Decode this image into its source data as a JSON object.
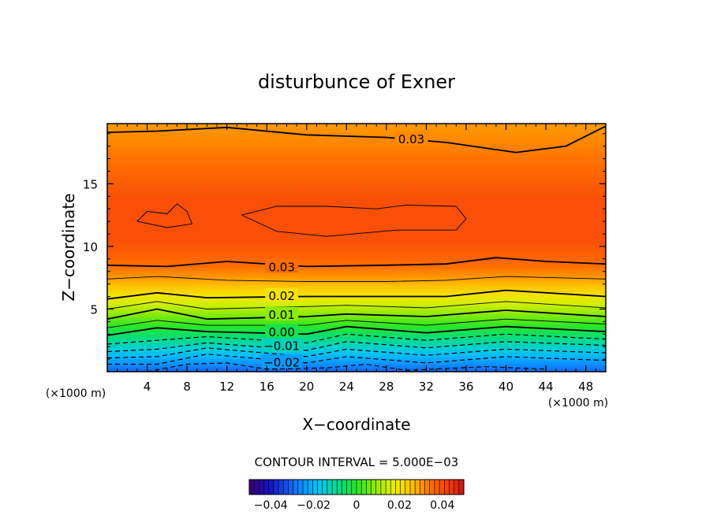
{
  "chart_data": {
    "type": "contour",
    "title": "disturbunce of Exner",
    "xlabel": "X−coordinate",
    "ylabel": "Z−coordinate",
    "x_unit": "(×1000 m)",
    "y_unit": "(×1000 m)",
    "xlim": [
      0,
      50
    ],
    "ylim": [
      0,
      19.8
    ],
    "x_ticks": [
      "4",
      "8",
      "12",
      "16",
      "20",
      "24",
      "28",
      "32",
      "36",
      "40",
      "44",
      "48"
    ],
    "y_ticks": [
      "5",
      "10",
      "15"
    ],
    "contour_interval_text": "CONTOUR INTERVAL = 5.000E−03",
    "contour_interval": 0.005,
    "contour_labels": [
      {
        "text": "0.03",
        "x": 30.5,
        "z": 18.6
      },
      {
        "text": "0.03",
        "x": 17.5,
        "z": 8.4
      },
      {
        "text": "0.02",
        "x": 17.5,
        "z": 6.1
      },
      {
        "text": "0.01",
        "x": 17.5,
        "z": 4.6
      },
      {
        "text": "0.00",
        "x": 17.5,
        "z": 3.2
      },
      {
        "text": "−0.01",
        "x": 17.5,
        "z": 2.1
      },
      {
        "text": "−0.02",
        "x": 17.5,
        "z": 0.8
      }
    ],
    "colorbar": {
      "range": [
        -0.05,
        0.05
      ],
      "tick_values": [
        -0.04,
        -0.02,
        0,
        0.02,
        0.04
      ],
      "tick_labels": [
        "−0.04",
        "−0.02",
        "0",
        "0.02",
        "0.04"
      ]
    },
    "field_rows": [
      {
        "z": 0.0,
        "value": -0.03
      },
      {
        "z": 0.6,
        "value": -0.025
      },
      {
        "z": 1.2,
        "value": -0.02
      },
      {
        "z": 1.8,
        "value": -0.015
      },
      {
        "z": 2.4,
        "value": -0.01
      },
      {
        "z": 3.0,
        "value": -0.005
      },
      {
        "z": 3.6,
        "value": 0.0
      },
      {
        "z": 4.2,
        "value": 0.005
      },
      {
        "z": 4.8,
        "value": 0.01
      },
      {
        "z": 5.4,
        "value": 0.015
      },
      {
        "z": 6.1,
        "value": 0.02
      },
      {
        "z": 6.8,
        "value": 0.025
      },
      {
        "z": 7.5,
        "value": 0.03
      },
      {
        "z": 8.4,
        "value": 0.035
      },
      {
        "z": 10.5,
        "value": 0.04
      },
      {
        "z": 13.8,
        "value": 0.04
      },
      {
        "z": 16.5,
        "value": 0.035
      },
      {
        "z": 19.8,
        "value": 0.03
      }
    ],
    "contour_lines": [
      {
        "value": 0.03,
        "style": "solid",
        "points": [
          [
            0,
            19.1
          ],
          [
            5,
            19.2
          ],
          [
            12,
            19.5
          ],
          [
            20,
            18.9
          ],
          [
            28,
            18.7
          ],
          [
            34,
            18.3
          ],
          [
            41,
            17.5
          ],
          [
            46,
            18.0
          ],
          [
            50,
            19.6
          ]
        ]
      },
      {
        "value": 0.035,
        "style": "thin",
        "points": [
          [
            3,
            12.0
          ],
          [
            4,
            12.8
          ],
          [
            6,
            12.6
          ],
          [
            7,
            13.4
          ],
          [
            8,
            12.8
          ],
          [
            8.5,
            11.8
          ],
          [
            6,
            11.5
          ],
          [
            3,
            12.0
          ]
        ]
      },
      {
        "value": 0.035,
        "style": "thin",
        "points": [
          [
            13.5,
            12.5
          ],
          [
            17,
            13.2
          ],
          [
            22,
            13.2
          ],
          [
            27,
            13.0
          ],
          [
            30,
            13.3
          ],
          [
            35,
            13.2
          ],
          [
            36,
            12.2
          ],
          [
            35,
            11.3
          ],
          [
            29,
            11.3
          ],
          [
            22,
            10.8
          ],
          [
            17,
            11.2
          ],
          [
            13.5,
            12.5
          ]
        ]
      },
      {
        "value": 0.03,
        "style": "solid",
        "points": [
          [
            0,
            8.5
          ],
          [
            6,
            8.4
          ],
          [
            12,
            8.8
          ],
          [
            20,
            8.4
          ],
          [
            28,
            8.5
          ],
          [
            34,
            8.6
          ],
          [
            39,
            9.1
          ],
          [
            44,
            8.8
          ],
          [
            50,
            8.6
          ]
        ]
      },
      {
        "value": 0.025,
        "style": "thin",
        "points": [
          [
            0,
            7.4
          ],
          [
            5,
            7.6
          ],
          [
            12,
            7.3
          ],
          [
            20,
            7.2
          ],
          [
            28,
            7.2
          ],
          [
            34,
            7.3
          ],
          [
            40,
            7.6
          ],
          [
            50,
            7.4
          ]
        ]
      },
      {
        "value": 0.02,
        "style": "solid",
        "points": [
          [
            0,
            5.8
          ],
          [
            5,
            6.3
          ],
          [
            10,
            5.9
          ],
          [
            20,
            6.0
          ],
          [
            28,
            6.0
          ],
          [
            34,
            6.0
          ],
          [
            40,
            6.5
          ],
          [
            50,
            6.0
          ]
        ]
      },
      {
        "value": 0.015,
        "style": "thin",
        "points": [
          [
            0,
            5.0
          ],
          [
            5,
            5.6
          ],
          [
            10,
            5.0
          ],
          [
            20,
            5.2
          ],
          [
            24,
            5.3
          ],
          [
            32,
            5.1
          ],
          [
            40,
            5.6
          ],
          [
            50,
            5.1
          ]
        ]
      },
      {
        "value": 0.01,
        "style": "solid",
        "points": [
          [
            0,
            4.2
          ],
          [
            5,
            5.0
          ],
          [
            10,
            4.2
          ],
          [
            20,
            4.4
          ],
          [
            24,
            4.6
          ],
          [
            32,
            4.4
          ],
          [
            40,
            4.9
          ],
          [
            50,
            4.4
          ]
        ]
      },
      {
        "value": 0.005,
        "style": "thin",
        "points": [
          [
            0,
            3.5
          ],
          [
            5,
            4.1
          ],
          [
            10,
            3.7
          ],
          [
            20,
            3.7
          ],
          [
            24,
            4.1
          ],
          [
            32,
            3.7
          ],
          [
            40,
            4.2
          ],
          [
            50,
            3.8
          ]
        ]
      },
      {
        "value": 0.0,
        "style": "solid",
        "points": [
          [
            0,
            2.9
          ],
          [
            5,
            3.5
          ],
          [
            10,
            3.2
          ],
          [
            20,
            3.0
          ],
          [
            24,
            3.6
          ],
          [
            32,
            3.1
          ],
          [
            40,
            3.6
          ],
          [
            50,
            3.2
          ]
        ]
      },
      {
        "value": -0.005,
        "style": "dashed",
        "points": [
          [
            0,
            2.2
          ],
          [
            5,
            2.5
          ],
          [
            10,
            2.8
          ],
          [
            20,
            2.3
          ],
          [
            24,
            3.0
          ],
          [
            32,
            2.5
          ],
          [
            40,
            3.0
          ],
          [
            50,
            2.6
          ]
        ]
      },
      {
        "value": -0.01,
        "style": "dashed",
        "points": [
          [
            0,
            1.6
          ],
          [
            5,
            1.8
          ],
          [
            10,
            2.3
          ],
          [
            20,
            1.7
          ],
          [
            24,
            2.4
          ],
          [
            32,
            1.9
          ],
          [
            40,
            2.4
          ],
          [
            50,
            2.1
          ]
        ]
      },
      {
        "value": -0.015,
        "style": "dashed",
        "points": [
          [
            0,
            1.1
          ],
          [
            5,
            1.2
          ],
          [
            10,
            1.9
          ],
          [
            20,
            1.2
          ],
          [
            24,
            1.8
          ],
          [
            32,
            1.3
          ],
          [
            40,
            1.8
          ],
          [
            50,
            1.5
          ]
        ]
      },
      {
        "value": -0.02,
        "style": "dashed",
        "points": [
          [
            0,
            0.6
          ],
          [
            5,
            0.6
          ],
          [
            10,
            1.4
          ],
          [
            20,
            0.7
          ],
          [
            24,
            1.2
          ],
          [
            32,
            0.7
          ],
          [
            40,
            1.2
          ],
          [
            50,
            0.9
          ]
        ]
      },
      {
        "value": -0.025,
        "style": "dashed",
        "points": [
          [
            4,
            0.0
          ],
          [
            8,
            0.6
          ],
          [
            12,
            0.7
          ],
          [
            16,
            0.2
          ],
          [
            22,
            0.3
          ],
          [
            26,
            0.6
          ],
          [
            30,
            0.1
          ],
          [
            38,
            0.4
          ],
          [
            44,
            0.2
          ]
        ]
      }
    ]
  }
}
